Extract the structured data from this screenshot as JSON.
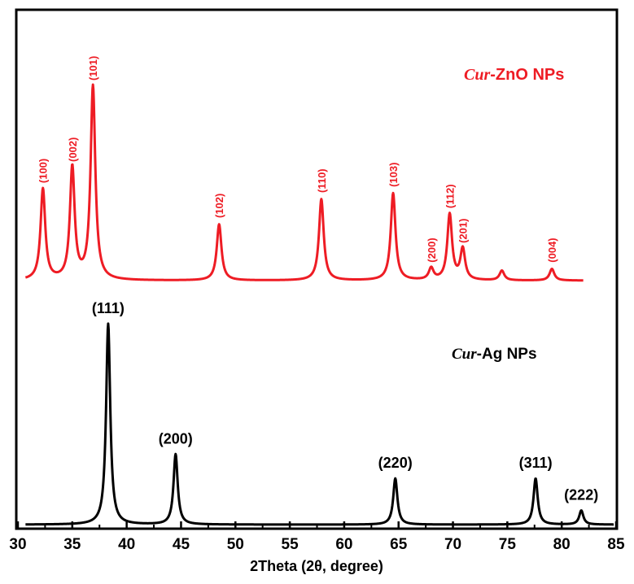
{
  "chart_data": {
    "type": "line",
    "xlabel": "2Theta (2θ, degree)",
    "xlim": [
      30,
      85
    ],
    "xticks": [
      30,
      35,
      40,
      45,
      50,
      55,
      60,
      65,
      70,
      75,
      80,
      85
    ],
    "colors": {
      "red": "#ee1c24",
      "black": "#000000"
    },
    "series": [
      {
        "name_prefix": "Cur",
        "name_suffix": "-ZnO NPs",
        "color": "#ee1c24",
        "peaks": [
          {
            "x": 32.3,
            "height": 0.47,
            "label": "(100)"
          },
          {
            "x": 35.0,
            "height": 0.58,
            "label": "(002)"
          },
          {
            "x": 36.9,
            "height": 1.0,
            "label": "(101)"
          },
          {
            "x": 48.5,
            "height": 0.29,
            "label": "(102)"
          },
          {
            "x": 57.9,
            "height": 0.42,
            "label": "(110)"
          },
          {
            "x": 64.5,
            "height": 0.45,
            "label": "(103)"
          },
          {
            "x": 68.0,
            "height": 0.06,
            "label": "(200)"
          },
          {
            "x": 69.7,
            "height": 0.34,
            "label": "(112)"
          },
          {
            "x": 70.9,
            "height": 0.16,
            "label": "(201)"
          },
          {
            "x": 74.5,
            "height": 0.05,
            "label": ""
          },
          {
            "x": 79.1,
            "height": 0.06,
            "label": "(004)"
          }
        ]
      },
      {
        "name_prefix": "Cur",
        "name_suffix": "-Ag NPs",
        "color": "#000000",
        "peaks": [
          {
            "x": 38.3,
            "height": 1.0,
            "label": "(111)"
          },
          {
            "x": 44.5,
            "height": 0.35,
            "label": "(200)"
          },
          {
            "x": 64.7,
            "height": 0.23,
            "label": "(220)"
          },
          {
            "x": 77.6,
            "height": 0.23,
            "label": "(311)"
          },
          {
            "x": 81.8,
            "height": 0.07,
            "label": "(222)"
          }
        ]
      }
    ]
  }
}
